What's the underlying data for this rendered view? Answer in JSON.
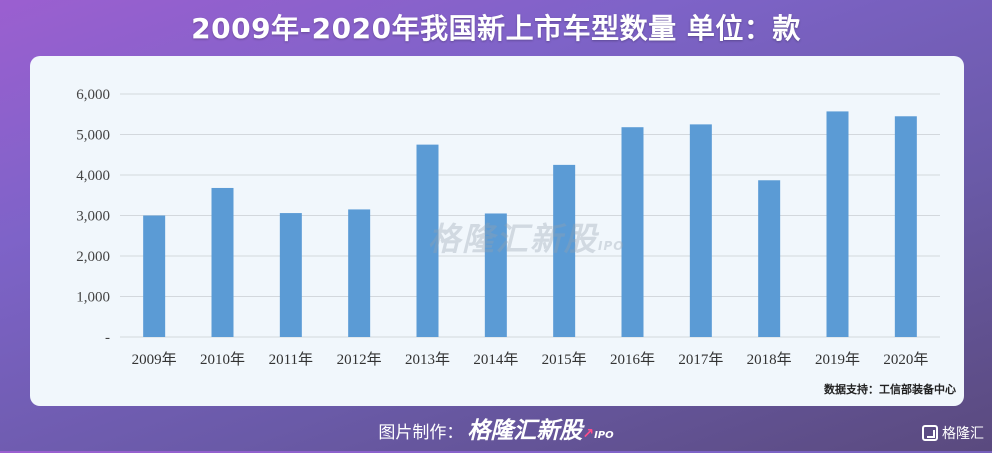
{
  "header": {
    "title": "2009年-2020年我国新上市车型数量 单位：款"
  },
  "chart_data": {
    "type": "bar",
    "categories": [
      "2009年",
      "2010年",
      "2011年",
      "2012年",
      "2013年",
      "2014年",
      "2015年",
      "2016年",
      "2017年",
      "2018年",
      "2019年",
      "2020年"
    ],
    "values": [
      3000,
      3680,
      3060,
      3150,
      4750,
      3050,
      4250,
      5180,
      5250,
      3870,
      5570,
      5450
    ],
    "ylim": [
      0,
      6000
    ],
    "yticks": [
      0,
      1000,
      2000,
      3000,
      4000,
      5000,
      6000
    ],
    "ytick_labels": [
      "-",
      "1,000",
      "2,000",
      "3,000",
      "4,000",
      "5,000",
      "6,000"
    ],
    "grid": true,
    "bar_color": "#5b9bd5"
  },
  "source": "数据支持：工信部装备中心",
  "watermark": {
    "text": "格隆汇新股",
    "sub": "IPO"
  },
  "footer": {
    "label": "图片制作：",
    "brand": "格隆汇新股",
    "ipo": "IPO",
    "arrow": "↗"
  },
  "corner_logo": {
    "text": "格隆汇",
    "icon": "gelonghui-logo-icon"
  }
}
